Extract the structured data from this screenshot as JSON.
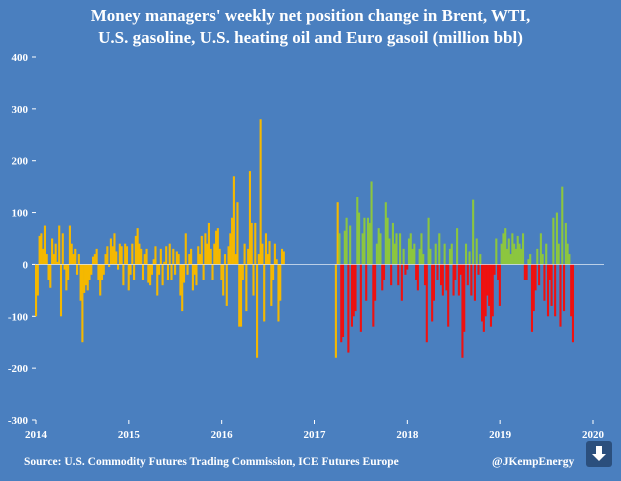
{
  "title_line1": "Money managers' weekly net position change in Brent, WTI,",
  "title_line2": "U.S. gasoline, U.S. heating oil and Euro gasoil (million bbl)",
  "source": "Source: U.S. Commodity Futures Trading Commission, ICE Futures Europe",
  "credit": "@JKempEnergy",
  "download_icon": "download-arrow-icon",
  "colors": {
    "background": "#4a7fbf",
    "period1": "#f5b800",
    "period2_positive": "#8cc63f",
    "period2_negative": "#ee1111",
    "text": "#ffffff"
  },
  "chart_data": {
    "type": "bar",
    "title": "Money managers' weekly net position change in Brent, WTI, U.S. gasoline, U.S. heating oil and Euro gasoil (million bbl)",
    "ylim": [
      -300,
      400
    ],
    "yticks": [
      "400",
      "300",
      "200",
      "100",
      "0",
      "-100",
      "-200",
      "-300"
    ],
    "ytick_values": [
      400,
      300,
      200,
      100,
      0,
      -100,
      -200,
      -300
    ],
    "xticks": [
      "2014",
      "2015",
      "2016",
      "2017",
      "2018",
      "2019",
      "2020"
    ],
    "xtick_values": [
      2014,
      2015,
      2016,
      2017,
      2018,
      2019,
      2020
    ],
    "grid": false,
    "color_split_year": 2017.25,
    "series": [
      {
        "start_year": 2014.0,
        "step_years": 0.0192,
        "values": [
          -100,
          -60,
          55,
          60,
          30,
          75,
          20,
          -30,
          -45,
          50,
          20,
          40,
          5,
          75,
          -100,
          60,
          -10,
          -50,
          -30,
          75,
          40,
          20,
          30,
          -20,
          20,
          -70,
          -150,
          -55,
          -40,
          -50,
          -30,
          -20,
          15,
          20,
          30,
          -30,
          -60,
          -30,
          -20,
          20,
          35,
          -5,
          50,
          35,
          60,
          25,
          -10,
          40,
          35,
          -40,
          40,
          35,
          -50,
          -20,
          40,
          -30,
          55,
          70,
          40,
          30,
          -30,
          20,
          30,
          -35,
          -40,
          -20,
          10,
          35,
          -60,
          -20,
          30,
          -40,
          5,
          35,
          -30,
          40,
          -30,
          30,
          -20,
          25,
          20,
          -60,
          -90,
          -35,
          60,
          -20,
          20,
          30,
          -50,
          -20,
          -40,
          35,
          20,
          55,
          -30,
          60,
          40,
          80,
          30,
          -30,
          40,
          65,
          70,
          30,
          -30,
          -60,
          20,
          -80,
          35,
          60,
          90,
          170,
          20,
          120,
          -120,
          -120,
          -30,
          40,
          -90,
          30,
          180,
          80,
          -60,
          80,
          -180,
          20,
          280,
          40,
          -110,
          60,
          20,
          45,
          -80,
          -30,
          40,
          10,
          -110,
          -70,
          30,
          25
        ]
      },
      {
        "start_year": 2017.23,
        "step_years": 0.0192,
        "values": [
          -180,
          120,
          60,
          -150,
          -140,
          65,
          90,
          -170,
          75,
          -120,
          -100,
          -90,
          130,
          100,
          -130,
          60,
          90,
          -70,
          90,
          80,
          160,
          -120,
          -70,
          40,
          70,
          60,
          -50,
          -30,
          120,
          90,
          50,
          -40,
          80,
          40,
          60,
          -40,
          60,
          -70,
          30,
          -20,
          -10,
          50,
          60,
          30,
          40,
          -30,
          -50,
          30,
          60,
          20,
          -40,
          -150,
          90,
          30,
          -110,
          -70,
          40,
          -30,
          60,
          -40,
          -60,
          40,
          -50,
          -120,
          30,
          40,
          -60,
          -30,
          70,
          -60,
          -20,
          -180,
          -130,
          40,
          -40,
          25,
          -60,
          125,
          -70,
          50,
          -20,
          20,
          -110,
          -130,
          -100,
          -60,
          -80,
          -120,
          -100,
          -20,
          50,
          -30,
          -80,
          40,
          60,
          70,
          30,
          50,
          20,
          60,
          40,
          30,
          55,
          40,
          30,
          60,
          -30,
          -30,
          10,
          20,
          -130,
          -90,
          -50,
          30,
          -40,
          60,
          20,
          -70,
          40,
          -100,
          -30,
          -80,
          90,
          -100,
          100,
          40,
          -120,
          150,
          -90,
          80,
          40,
          20,
          -100,
          -150
        ]
      }
    ]
  }
}
